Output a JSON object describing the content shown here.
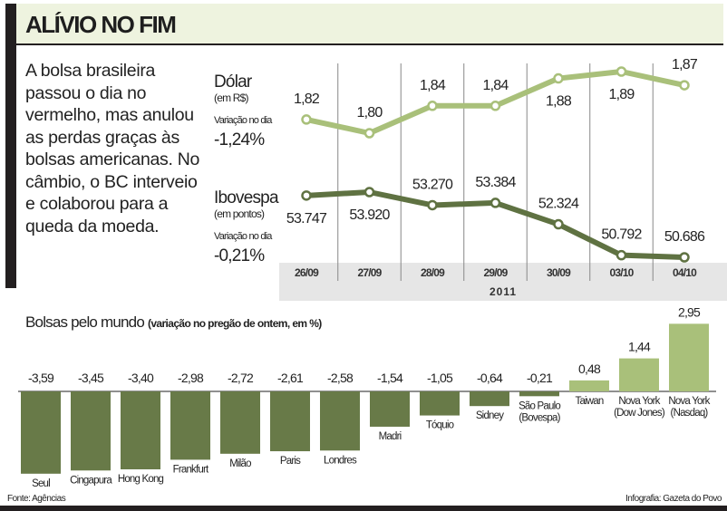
{
  "header": {
    "title": "ALÍVIO NO FIM"
  },
  "lead_text": "A bolsa brasileira passou o dia no vermelho, mas anulou as perdas graças às bolsas americanas. No câmbio, o BC interveio e colaborou para a queda da moeda.",
  "colors": {
    "header_bg": "#eef3df",
    "dolar_line": "#a9c07a",
    "ibovespa_line": "#5f7242",
    "negative_bar": "#687a48",
    "positive_bar": "#a9c07a",
    "axis_band": "#e6e6e6"
  },
  "chart_data": [
    {
      "type": "line",
      "categories": [
        "26/09",
        "27/09",
        "28/09",
        "29/09",
        "30/09",
        "03/10",
        "04/10"
      ],
      "xlabel": "2011",
      "grid": "vertical",
      "series": [
        {
          "name": "Dólar",
          "unit": "(em R$)",
          "variation_label": "Variação no dia",
          "variation": "-1,24%",
          "values": [
            1.82,
            1.8,
            1.84,
            1.84,
            1.88,
            1.89,
            1.87
          ],
          "labels": [
            "1,82",
            "1,80",
            "1,84",
            "1,84",
            "1,88",
            "1,89",
            "1,87"
          ]
        },
        {
          "name": "Ibovespa",
          "unit": "(em pontos)",
          "variation_label": "Variação no dia",
          "variation": "-0,21%",
          "values": [
            53747,
            53920,
            53270,
            53384,
            52324,
            50792,
            50686
          ],
          "labels": [
            "53.747",
            "53.920",
            "53.270",
            "53.384",
            "52.324",
            "50.792",
            "50.686"
          ]
        }
      ]
    },
    {
      "type": "bar",
      "title": "Bolsas pelo mundo",
      "subtitle": "(variação no pregão de ontem, em %)",
      "categories": [
        "Seul",
        "Cingapura",
        "Hong Kong",
        "Frankfurt",
        "Milão",
        "Paris",
        "Londres",
        "Madri",
        "Tóquio",
        "Sidney",
        "São Paulo|(Bovespa)",
        "Taiwan",
        "Nova York|(Dow Jones)",
        "Nova York|(Nasdaq)"
      ],
      "values": [
        -3.59,
        -3.45,
        -3.4,
        -2.98,
        -2.72,
        -2.61,
        -2.58,
        -1.54,
        -1.05,
        -0.64,
        -0.21,
        0.48,
        1.44,
        2.95
      ],
      "labels": [
        "-3,59",
        "-3,45",
        "-3,40",
        "-2,98",
        "-2,72",
        "-2,61",
        "-2,58",
        "-1,54",
        "-1,05",
        "-0,64",
        "-0,21",
        "0,48",
        "1,44",
        "2,95"
      ]
    }
  ],
  "footer": {
    "source": "Fonte: Agências",
    "credit": "Infografia: Gazeta do Povo"
  }
}
